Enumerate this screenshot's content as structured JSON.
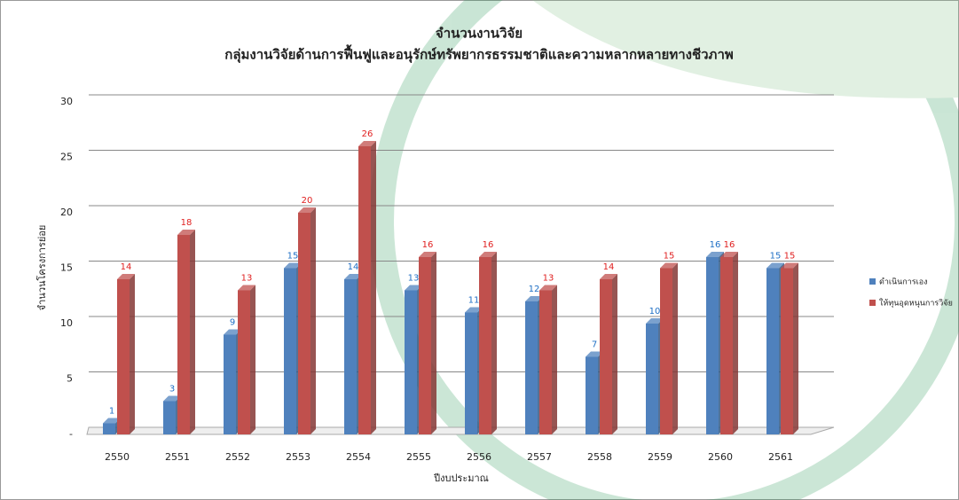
{
  "chart_data": {
    "type": "bar",
    "title": [
      "จำนวนงานวิจัย",
      "กลุ่มงานวิจัยด้านการฟื้นฟูและอนุรักษ์ทรัพยากรธรรมชาติและความหลากหลายทางชีวภาพ"
    ],
    "y_label": "จำนวนโครงการย่อย",
    "x_label": "ปีงบประมาณ",
    "categories": [
      "2550",
      "2551",
      "2552",
      "2553",
      "2554",
      "2555",
      "2556",
      "2557",
      "2558",
      "2559",
      "2560",
      "2561"
    ],
    "series": [
      {
        "name": "ดำเนินการเอง",
        "color": "#4f81bd",
        "label_color": "#1f6fc5",
        "values": [
          1,
          3,
          9,
          15,
          14,
          13,
          11,
          12,
          7,
          10,
          16,
          15
        ]
      },
      {
        "name": "ให้ทุนอุดหนุนการวิจัย",
        "color": "#c0504d",
        "label_color": "#e02020",
        "values": [
          14,
          18,
          13,
          20,
          26,
          16,
          16,
          13,
          14,
          15,
          16,
          15
        ]
      }
    ],
    "ylim": [
      0,
      30
    ],
    "yticks": [
      {
        "value": 0,
        "label": "-"
      },
      5,
      10,
      15,
      20,
      25,
      30
    ],
    "grid": true,
    "legend": "right"
  }
}
